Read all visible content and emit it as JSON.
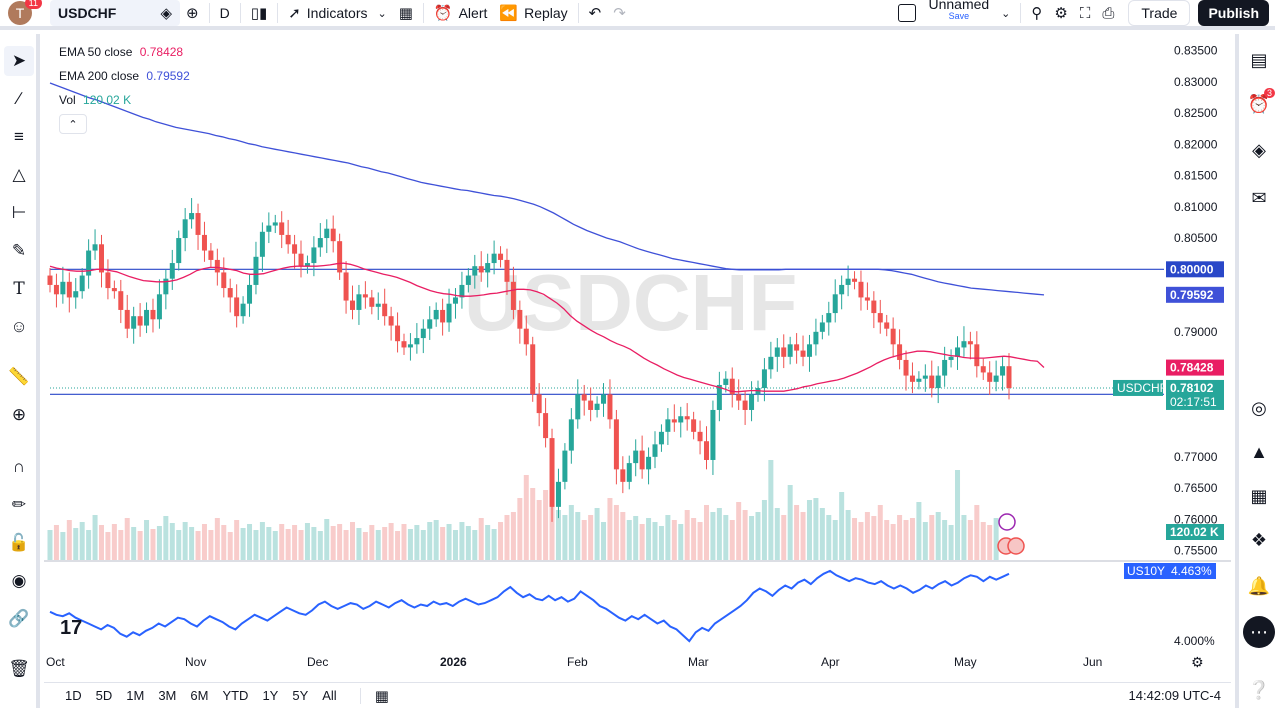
{
  "topbar": {
    "avatar_letter": "T",
    "notification_count": "11",
    "symbol": "USDCHF",
    "interval": "D",
    "indicators_label": "Indicators",
    "alert_label": "Alert",
    "replay_label": "Replay",
    "layout_name": "Unnamed",
    "save_label": "Save",
    "trade_label": "Trade",
    "publish_label": "Publish"
  },
  "legend": {
    "ema50_label": "EMA 50 close",
    "ema50_value": "0.78428",
    "ema200_label": "EMA 200 close",
    "ema200_value": "0.79592",
    "vol_label": "Vol",
    "vol_value": "120.02 K"
  },
  "watermark": "USDCHF",
  "rightbar": {
    "alerts_count": "3"
  },
  "bottombar": {
    "ranges": [
      "1D",
      "5D",
      "1M",
      "3M",
      "6M",
      "YTD",
      "1Y",
      "5Y",
      "All"
    ],
    "clock": "14:42:09 UTC-4"
  },
  "chart_data": {
    "type": "candlestick",
    "symbol": "USDCHF",
    "interval": "D",
    "price_axis_ticks": [
      "0.83500",
      "0.83000",
      "0.82500",
      "0.82000",
      "0.81500",
      "0.81000",
      "0.80500",
      "0.79000",
      "0.77000",
      "0.76500",
      "0.76000",
      "0.75500"
    ],
    "ylim": [
      0.7535,
      0.837
    ],
    "time_axis_labels": [
      "Oct",
      "Nov",
      "Dec",
      "2026",
      "Feb",
      "Mar",
      "Apr",
      "May",
      "Jun"
    ],
    "price_labels": {
      "level_line": "0.80000",
      "ema200": "0.79592",
      "ema50": "0.78428",
      "current_symbol": "USDCHF",
      "current_price": "0.78102",
      "countdown": "02:17:51",
      "lower_line": "0.78000",
      "volume": "120.02 K"
    },
    "horizontal_lines": [
      0.8,
      0.78
    ],
    "colors": {
      "up": "#26a69a",
      "down": "#ef5350",
      "ema50": "#e91e63",
      "ema200": "#3f51d8",
      "line": "#2962ff",
      "us10y": "#2962ff"
    },
    "close_path": [
      0.7975,
      0.796,
      0.798,
      0.7955,
      0.7965,
      0.799,
      0.803,
      0.804,
      0.7995,
      0.797,
      0.7965,
      0.7935,
      0.7905,
      0.7925,
      0.791,
      0.7935,
      0.792,
      0.796,
      0.7985,
      0.801,
      0.805,
      0.808,
      0.809,
      0.8055,
      0.803,
      0.8015,
      0.7995,
      0.797,
      0.7955,
      0.7925,
      0.7945,
      0.7975,
      0.802,
      0.806,
      0.807,
      0.8075,
      0.8055,
      0.804,
      0.8025,
      0.8005,
      0.801,
      0.8035,
      0.805,
      0.8065,
      0.8045,
      0.7995,
      0.795,
      0.7935,
      0.796,
      0.7955,
      0.794,
      0.7945,
      0.7925,
      0.791,
      0.7885,
      0.7875,
      0.788,
      0.789,
      0.7905,
      0.792,
      0.7935,
      0.7915,
      0.7945,
      0.7955,
      0.7975,
      0.799,
      0.8005,
      0.7995,
      0.801,
      0.8025,
      0.8015,
      0.798,
      0.7935,
      0.7905,
      0.788,
      0.78,
      0.777,
      0.773,
      0.762,
      0.766,
      0.771,
      0.776,
      0.78,
      0.779,
      0.7775,
      0.7785,
      0.78,
      0.776,
      0.768,
      0.766,
      0.769,
      0.771,
      0.768,
      0.77,
      0.772,
      0.774,
      0.776,
      0.7755,
      0.7765,
      0.776,
      0.774,
      0.7725,
      0.7695,
      0.7775,
      0.7815,
      0.7825,
      0.78,
      0.779,
      0.7775,
      0.78,
      0.781,
      0.784,
      0.786,
      0.7875,
      0.786,
      0.788,
      0.787,
      0.786,
      0.788,
      0.79,
      0.7915,
      0.793,
      0.796,
      0.7975,
      0.7985,
      0.798,
      0.7955,
      0.795,
      0.793,
      0.7915,
      0.7905,
      0.788,
      0.7855,
      0.783,
      0.782,
      0.7825,
      0.783,
      0.781,
      0.783,
      0.7855,
      0.786,
      0.7875,
      0.7885,
      0.788,
      0.7845,
      0.7835,
      0.782,
      0.783,
      0.7845,
      0.781
    ],
    "ema50_path": [
      0.8005,
      0.8002,
      0.8,
      0.7998,
      0.7997,
      0.7997,
      0.7998,
      0.8,
      0.8,
      0.7998,
      0.7996,
      0.7992,
      0.7988,
      0.7985,
      0.7982,
      0.7981,
      0.798,
      0.798,
      0.7981,
      0.7983,
      0.7987,
      0.7992,
      0.7998,
      0.8001,
      0.8003,
      0.8003,
      0.8002,
      0.8,
      0.7998,
      0.7994,
      0.7992,
      0.7992,
      0.7993,
      0.7996,
      0.7999,
      0.8002,
      0.8004,
      0.8005,
      0.8005,
      0.8005,
      0.8005,
      0.8006,
      0.8007,
      0.8009,
      0.801,
      0.8008,
      0.8005,
      0.8001,
      0.7998,
      0.7995,
      0.7992,
      0.799,
      0.7987,
      0.7983,
      0.7979,
      0.7974,
      0.797,
      0.7966,
      0.7963,
      0.7961,
      0.796,
      0.7958,
      0.7957,
      0.7957,
      0.7958,
      0.7959,
      0.7961,
      0.7962,
      0.7964,
      0.7966,
      0.7968,
      0.7968,
      0.7967,
      0.7964,
      0.796,
      0.7953,
      0.7946,
      0.7937,
      0.7926,
      0.7917,
      0.791,
      0.7903,
      0.7897,
      0.7892,
      0.7886,
      0.7881,
      0.7877,
      0.7872,
      0.7865,
      0.7858,
      0.7852,
      0.7847,
      0.7841,
      0.7836,
      0.7831,
      0.7827,
      0.7824,
      0.7821,
      0.7818,
      0.7815,
      0.7812,
      0.7809,
      0.7805,
      0.7804,
      0.7805,
      0.7806,
      0.7806,
      0.7805,
      0.7805,
      0.7805,
      0.7805,
      0.7807,
      0.7809,
      0.7812,
      0.7814,
      0.7817,
      0.7819,
      0.7821,
      0.7823,
      0.7826,
      0.783,
      0.7834,
      0.7839,
      0.7844,
      0.785,
      0.7855,
      0.7859,
      0.7862,
      0.7865,
      0.7867,
      0.7869,
      0.7869,
      0.7868,
      0.7866,
      0.7864,
      0.7862,
      0.7861,
      0.7859,
      0.7858,
      0.7858,
      0.7858,
      0.7859,
      0.786,
      0.7861,
      0.786,
      0.7858,
      0.7856,
      0.7854,
      0.7853,
      0.7843
    ],
    "ema200_path": [
      0.8298,
      0.8294,
      0.829,
      0.8286,
      0.8282,
      0.8278,
      0.8274,
      0.8271,
      0.8267,
      0.8263,
      0.8259,
      0.8255,
      0.8251,
      0.8247,
      0.8243,
      0.824,
      0.8236,
      0.8233,
      0.823,
      0.8227,
      0.8225,
      0.8223,
      0.8221,
      0.8219,
      0.8217,
      0.8214,
      0.8212,
      0.8209,
      0.8207,
      0.8204,
      0.8201,
      0.8199,
      0.8196,
      0.8194,
      0.8192,
      0.819,
      0.8188,
      0.8186,
      0.8184,
      0.8182,
      0.818,
      0.8178,
      0.8176,
      0.8174,
      0.8172,
      0.817,
      0.8167,
      0.8164,
      0.8162,
      0.8159,
      0.8156,
      0.8154,
      0.8151,
      0.8148,
      0.8145,
      0.8142,
      0.8139,
      0.8137,
      0.8135,
      0.8133,
      0.8131,
      0.8129,
      0.8127,
      0.8126,
      0.8124,
      0.8122,
      0.812,
      0.8118,
      0.8117,
      0.8115,
      0.8113,
      0.811,
      0.8107,
      0.8104,
      0.81,
      0.8095,
      0.809,
      0.8084,
      0.8078,
      0.8072,
      0.8067,
      0.8062,
      0.8058,
      0.8054,
      0.805,
      0.8047,
      0.8044,
      0.804,
      0.8036,
      0.8032,
      0.8029,
      0.8026,
      0.8023,
      0.802,
      0.8017,
      0.8015,
      0.8013,
      0.8011,
      0.8009,
      0.8007,
      0.8005,
      0.8003,
      0.8001,
      0.8,
      0.7999,
      0.7999,
      0.7999,
      0.7999,
      0.7999,
      0.7999,
      0.7999,
      0.8,
      0.8,
      0.8,
      0.8,
      0.8,
      0.8,
      0.8,
      0.8,
      0.8,
      0.8,
      0.8,
      0.8,
      0.8,
      0.8,
      0.8,
      0.7999,
      0.7998,
      0.7996,
      0.7994,
      0.7992,
      0.7989,
      0.7986,
      0.7983,
      0.798,
      0.7978,
      0.7976,
      0.7974,
      0.7972,
      0.797,
      0.7969,
      0.7968,
      0.7967,
      0.7966,
      0.7965,
      0.7964,
      0.7963,
      0.7962,
      0.7961,
      0.796,
      0.7959
    ],
    "volume_series": "Vol",
    "volume_ylim": [
      0,
      1
    ],
    "volume_values": [
      0.3,
      0.35,
      0.28,
      0.4,
      0.32,
      0.38,
      0.3,
      0.45,
      0.35,
      0.28,
      0.36,
      0.3,
      0.42,
      0.33,
      0.29,
      0.4,
      0.31,
      0.34,
      0.44,
      0.37,
      0.3,
      0.38,
      0.33,
      0.29,
      0.36,
      0.3,
      0.42,
      0.35,
      0.28,
      0.4,
      0.32,
      0.36,
      0.3,
      0.38,
      0.33,
      0.29,
      0.36,
      0.31,
      0.35,
      0.3,
      0.37,
      0.33,
      0.29,
      0.41,
      0.34,
      0.36,
      0.3,
      0.38,
      0.32,
      0.28,
      0.35,
      0.3,
      0.33,
      0.37,
      0.29,
      0.36,
      0.31,
      0.35,
      0.3,
      0.38,
      0.4,
      0.33,
      0.36,
      0.3,
      0.38,
      0.34,
      0.3,
      0.42,
      0.35,
      0.31,
      0.38,
      0.45,
      0.48,
      0.62,
      0.85,
      0.72,
      0.6,
      0.7,
      0.55,
      0.5,
      0.45,
      0.55,
      0.48,
      0.4,
      0.45,
      0.52,
      0.38,
      0.62,
      0.55,
      0.48,
      0.4,
      0.44,
      0.36,
      0.42,
      0.38,
      0.34,
      0.45,
      0.4,
      0.36,
      0.5,
      0.42,
      0.38,
      0.55,
      0.48,
      0.52,
      0.45,
      0.4,
      0.58,
      0.5,
      0.44,
      0.48,
      0.6,
      1.0,
      0.52,
      0.45,
      0.75,
      0.55,
      0.48,
      0.6,
      0.62,
      0.52,
      0.45,
      0.4,
      0.68,
      0.5,
      0.42,
      0.38,
      0.48,
      0.44,
      0.55,
      0.4,
      0.36,
      0.45,
      0.4,
      0.42,
      0.58,
      0.38,
      0.45,
      0.48,
      0.4,
      0.35,
      0.9,
      0.45,
      0.4,
      0.55,
      0.38,
      0.35,
      0.42
    ],
    "us10y": {
      "label": "US10Y",
      "value": "4.463%",
      "axis_tick": "4.000%"
    },
    "us10y_path": [
      4.2,
      4.18,
      4.17,
      4.19,
      4.16,
      4.14,
      4.12,
      4.1,
      4.08,
      4.11,
      4.09,
      4.05,
      4.03,
      4.06,
      4.04,
      4.07,
      4.09,
      4.12,
      4.1,
      4.13,
      4.16,
      4.15,
      4.12,
      4.1,
      4.14,
      4.17,
      4.15,
      4.13,
      4.1,
      4.08,
      4.12,
      4.15,
      4.18,
      4.16,
      4.14,
      4.17,
      4.2,
      4.23,
      4.21,
      4.19,
      4.18,
      4.21,
      4.25,
      4.27,
      4.24,
      4.22,
      4.24,
      4.26,
      4.25,
      4.22,
      4.24,
      4.27,
      4.25,
      4.23,
      4.26,
      4.28,
      4.25,
      4.23,
      4.25,
      4.24,
      4.27,
      4.25,
      4.26,
      4.24,
      4.27,
      4.29,
      4.27,
      4.25,
      4.26,
      4.28,
      4.3,
      4.34,
      4.37,
      4.33,
      4.3,
      4.32,
      4.29,
      4.28,
      4.31,
      4.28,
      4.3,
      4.27,
      4.29,
      4.34,
      4.31,
      4.28,
      4.24,
      4.22,
      4.19,
      4.16,
      4.14,
      4.17,
      4.15,
      4.18,
      4.15,
      4.12,
      4.14,
      4.1,
      4.08,
      4.04,
      4.0,
      4.06,
      4.09,
      4.07,
      4.12,
      4.15,
      4.18,
      4.21,
      4.24,
      4.28,
      4.33,
      4.36,
      4.34,
      4.31,
      4.35,
      4.38,
      4.36,
      4.4,
      4.42,
      4.39,
      4.43,
      4.46,
      4.48,
      4.45,
      4.43,
      4.41,
      4.43,
      4.42,
      4.4,
      4.39,
      4.41,
      4.38,
      4.36,
      4.38,
      4.36,
      4.33,
      4.35,
      4.38,
      4.36,
      4.39,
      4.41,
      4.38,
      4.4,
      4.43,
      4.45,
      4.44,
      4.41,
      4.44,
      4.42,
      4.44,
      4.46
    ]
  }
}
